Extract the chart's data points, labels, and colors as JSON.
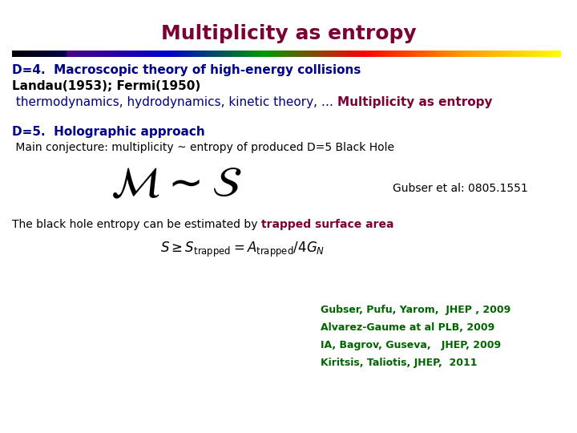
{
  "title": "Multiplicity as entropy",
  "title_color": "#7B0033",
  "title_fontsize": 18,
  "bg_color": "#ffffff",
  "line1_text": "D=4.  Macroscopic theory of high-energy collisions",
  "line1_color": "#00008B",
  "line1_fontsize": 11,
  "line2_text": "Landau(1953); Fermi(1950)",
  "line2_color": "#000000",
  "line2_fontsize": 11,
  "line3a_text": " thermodynamics, hydrodynamics, kinetic theory, … ",
  "line3a_color": "#000080",
  "line3b_text": "Multiplicity as entropy",
  "line3b_color": "#7B0033",
  "line3_fontsize": 11,
  "line4_text": "D=5.  Holographic approach",
  "line4_color": "#00008B",
  "line4_fontsize": 11,
  "line5_text": " Main conjecture: multiplicity ~ entropy of produced D=5 Black Hole",
  "line5_color": "#000000",
  "line5_fontsize": 10,
  "gubser_text": "Gubser et al: 0805.1551",
  "gubser_fontsize": 10,
  "line6a_text": "The black hole entropy can be estimated by ",
  "line6a_color": "#000000",
  "line6b_text": "trapped surface area",
  "line6b_color": "#7B0033",
  "line6_fontsize": 10,
  "refs": [
    {
      "text": "Gubser, Pufu, Yarom,  JHEP , 2009",
      "color": "#006400",
      "size": 9
    },
    {
      "text": "Alvarez-Gaume at al PLB, 2009",
      "color": "#006400",
      "size": 9
    },
    {
      "text": "IA, Bagrov, Guseva,   JHEP, 2009",
      "color": "#006400",
      "size": 9
    },
    {
      "text": "Kiritsis, Taliotis, JHEP,  2011",
      "color": "#006400",
      "size": 9
    }
  ]
}
